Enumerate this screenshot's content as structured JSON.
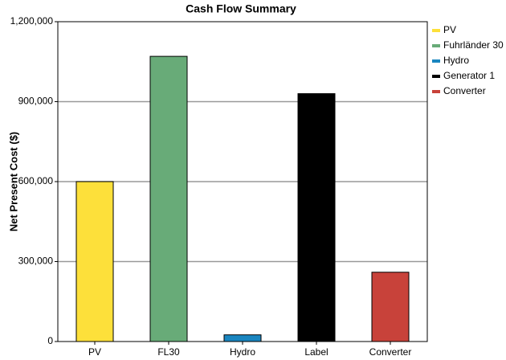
{
  "chart_data": {
    "type": "bar",
    "title": "Cash Flow Summary",
    "y_label": "Net Present Cost ($)",
    "categories": [
      "PV",
      "FL30",
      "Hydro",
      "Label",
      "Converter"
    ],
    "series": [
      {
        "name": "PV",
        "color": "#fde03a",
        "values": [
          600000,
          null,
          null,
          null,
          null
        ]
      },
      {
        "name": "Fuhrländer 30",
        "color": "#68ab78",
        "values": [
          null,
          1070000,
          null,
          null,
          null
        ]
      },
      {
        "name": "Hydro",
        "color": "#1a86c0",
        "values": [
          null,
          null,
          25000,
          null,
          null
        ]
      },
      {
        "name": "Generator 1",
        "color": "#000000",
        "values": [
          null,
          null,
          null,
          930000,
          null
        ]
      },
      {
        "name": "Converter",
        "color": "#c8423a",
        "values": [
          null,
          null,
          null,
          null,
          260000
        ]
      }
    ],
    "ylim": [
      0,
      1200000
    ],
    "yticks": [
      0,
      {
        "value": 300000,
        "label": "300,000"
      },
      {
        "value": 600000,
        "label": "600,000"
      },
      {
        "value": 900000,
        "label": "900,000"
      },
      {
        "value": 1200000,
        "label": "1,200,000"
      }
    ],
    "grid": true,
    "legend": "right"
  }
}
